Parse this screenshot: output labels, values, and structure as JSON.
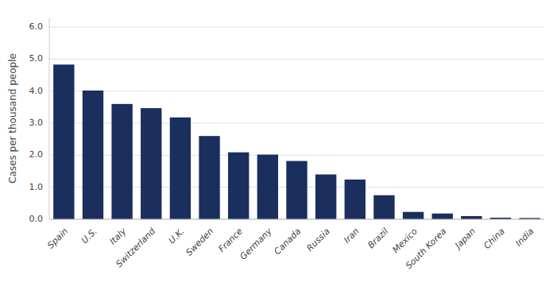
{
  "chart_data": {
    "type": "bar",
    "y_label": "Cases per thousand people",
    "categories": [
      "Spain",
      "U.S.",
      "Italy",
      "Switzerland",
      "U.K.",
      "Sweden",
      "France",
      "Germany",
      "Canada",
      "Russia",
      "Iran",
      "Brazil",
      "Mexico",
      "South Korea",
      "Japan",
      "China",
      "India"
    ],
    "values": [
      4.83,
      4.02,
      3.6,
      3.47,
      3.18,
      2.6,
      2.09,
      2.02,
      1.82,
      1.4,
      1.24,
      0.75,
      0.23,
      0.18,
      0.1,
      0.05,
      0.04
    ],
    "color": "#1b2f5e",
    "ylim": [
      0,
      6.3
    ],
    "yticks": [
      {
        "value": 0.0,
        "label": "0.0"
      },
      {
        "value": 1.0,
        "label": "1.0"
      },
      {
        "value": 2.0,
        "label": "2.0"
      },
      {
        "value": 3.0,
        "label": "3.0"
      },
      {
        "value": 4.0,
        "label": "4.0"
      },
      {
        "value": 5.0,
        "label": "5.0"
      },
      {
        "value": 6.0,
        "label": "6.0"
      }
    ],
    "grid": true
  }
}
